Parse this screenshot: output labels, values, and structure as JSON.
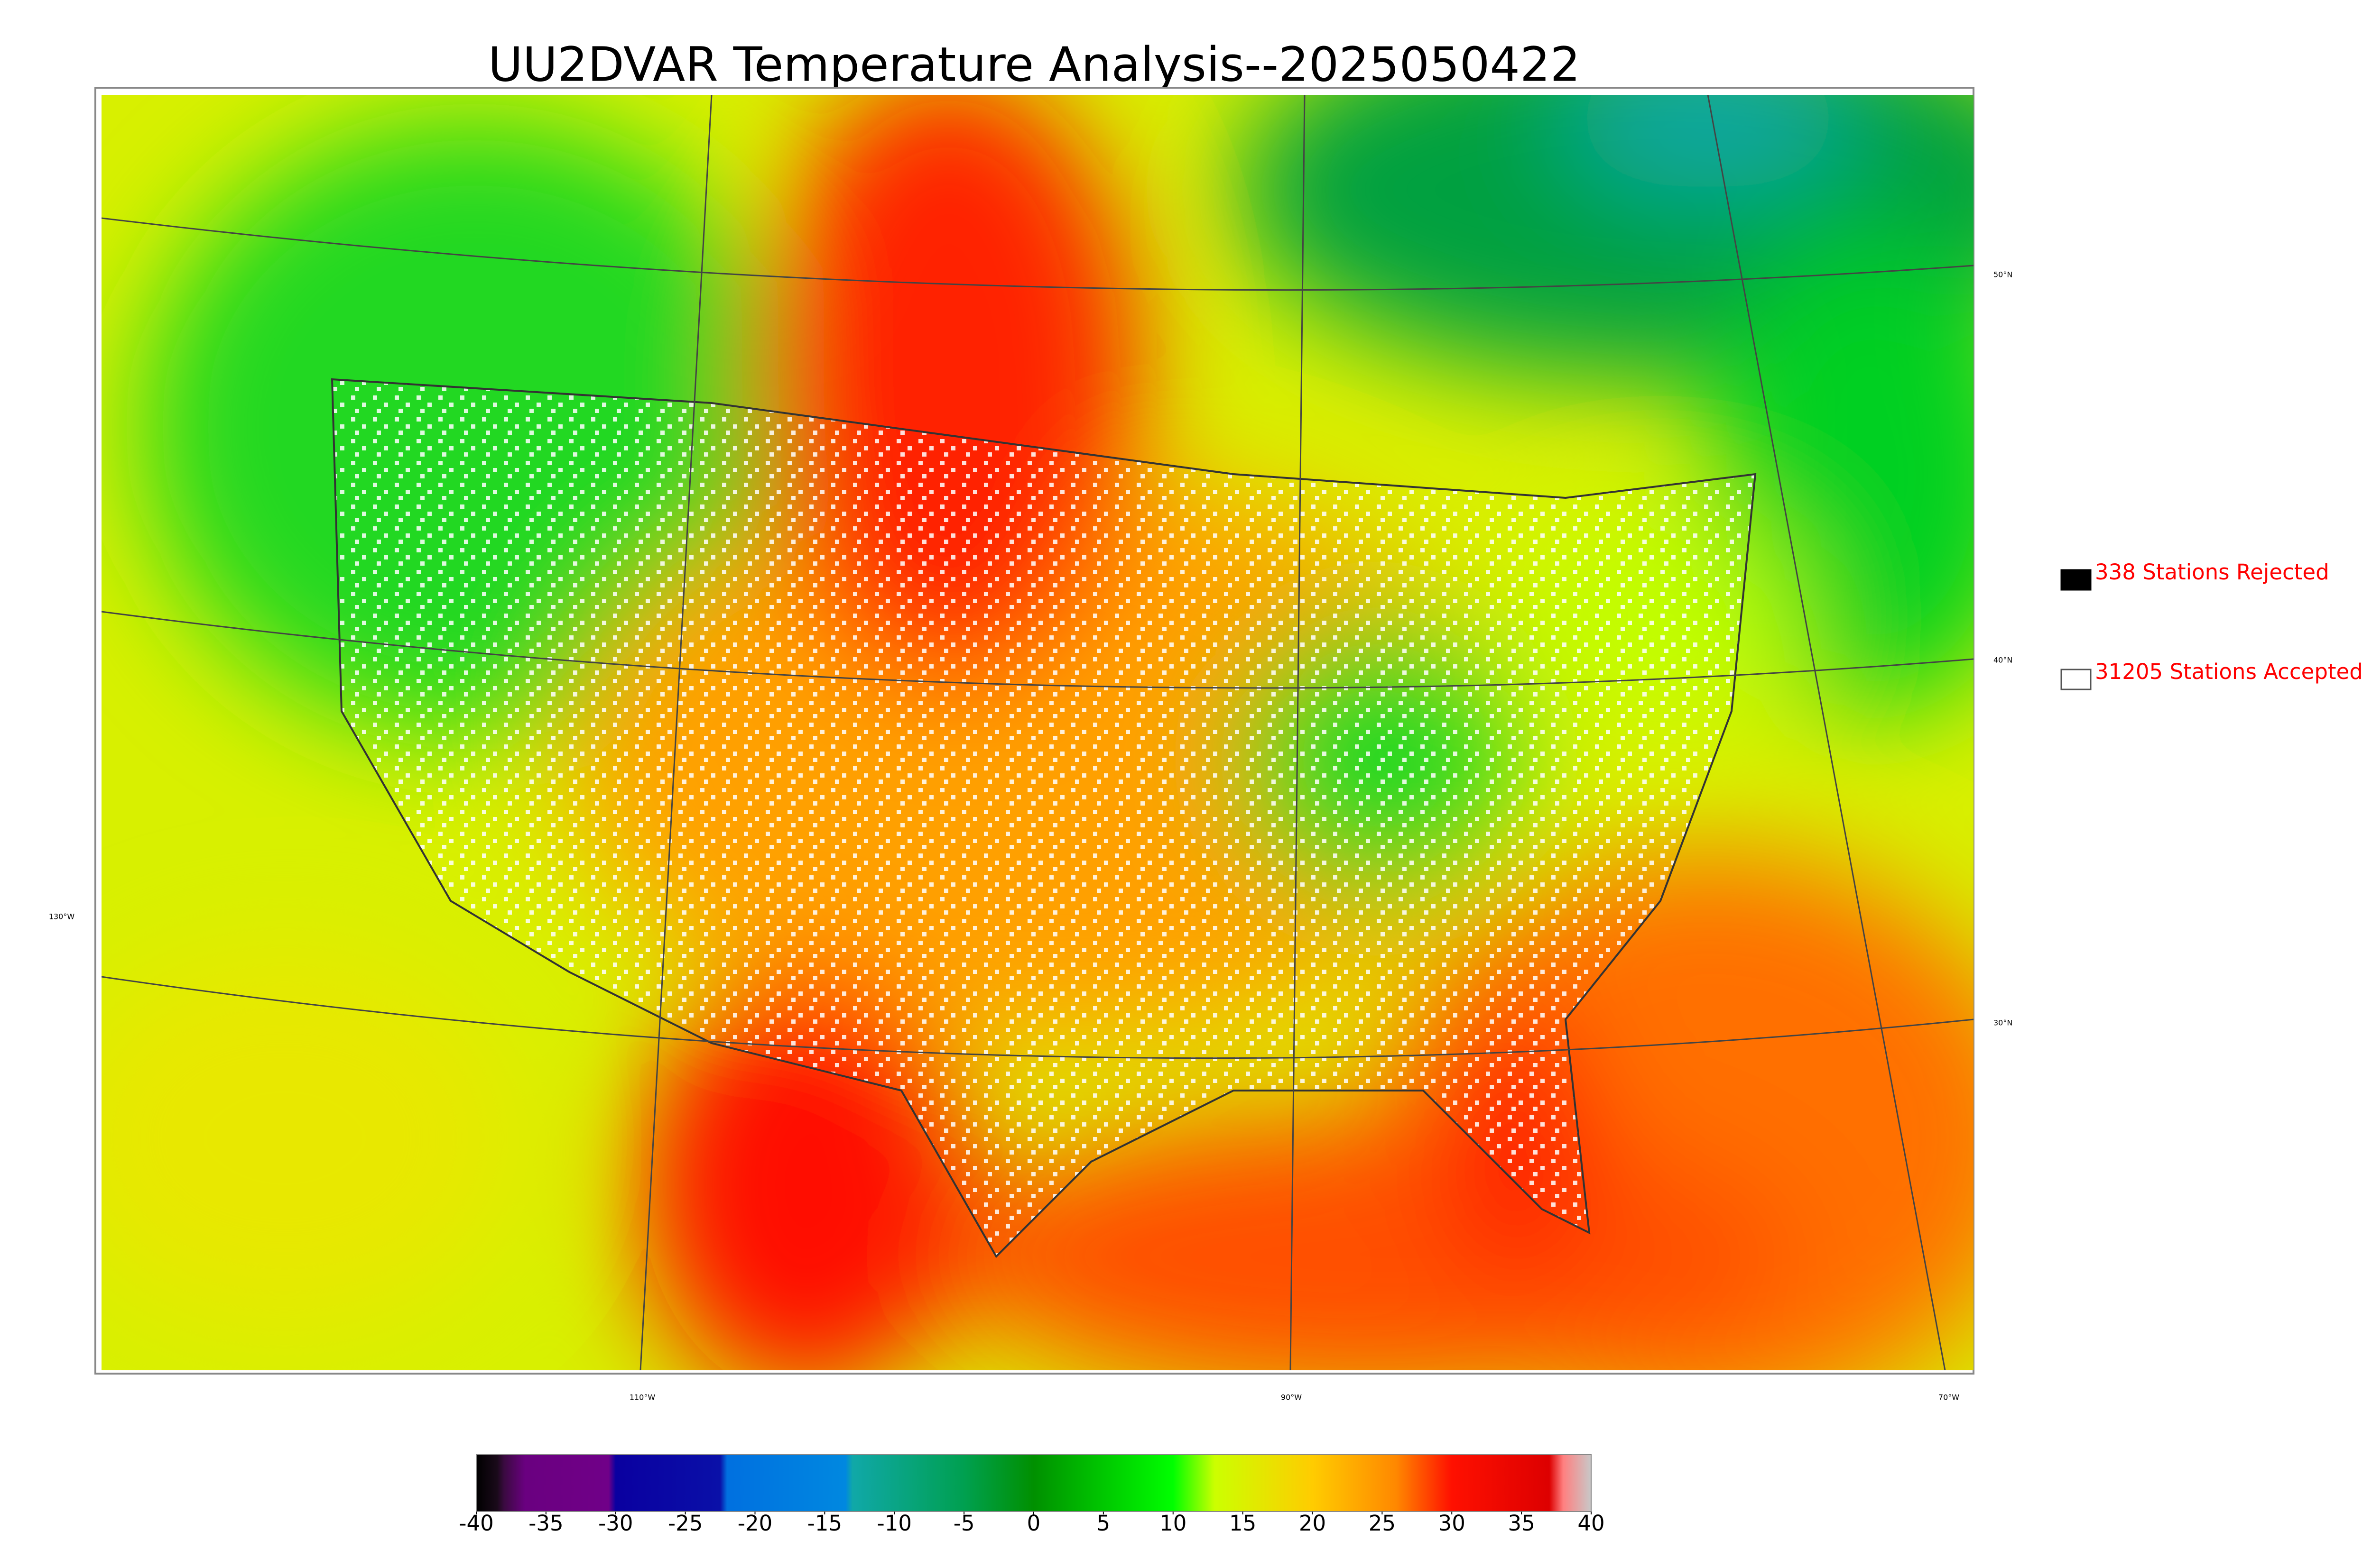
{
  "title": "UU2DVAR Temperature Analysis--2025050422",
  "legend": {
    "rejected": "338 Stations Rejected",
    "accepted": "31205 Stations Accepted"
  },
  "graticule": {
    "lat": [
      "50°N",
      "40°N",
      "30°N"
    ],
    "lon": [
      "130°W",
      "110°W",
      "90°W",
      "70°W"
    ]
  },
  "colorbar": {
    "lim": [
      -40,
      40
    ],
    "ticks": [
      -40,
      -35,
      -30,
      -25,
      -20,
      -15,
      -10,
      -5,
      0,
      5,
      10,
      15,
      20,
      25,
      30,
      35,
      40
    ],
    "stops": [
      {
        "value": -40,
        "color": "#000000"
      },
      {
        "value": -38.5,
        "color": "#1a0a1a"
      },
      {
        "value": -38,
        "color": "#3a0a40"
      },
      {
        "value": -36.5,
        "color": "#6a0080"
      },
      {
        "value": -30.5,
        "color": "#700088"
      },
      {
        "value": -30,
        "color": "#0a00a0"
      },
      {
        "value": -22.5,
        "color": "#0a10a8"
      },
      {
        "value": -22,
        "color": "#0070e0"
      },
      {
        "value": -13.5,
        "color": "#0088e0"
      },
      {
        "value": -13,
        "color": "#10a8a8"
      },
      {
        "value": -5,
        "color": "#00a050"
      },
      {
        "value": 0,
        "color": "#009000"
      },
      {
        "value": 10,
        "color": "#00ff00"
      },
      {
        "value": 13,
        "color": "#ccff00"
      },
      {
        "value": 20,
        "color": "#ffcc00"
      },
      {
        "value": 26,
        "color": "#ff8800"
      },
      {
        "value": 30,
        "color": "#ff1000"
      },
      {
        "value": 37,
        "color": "#dd0000"
      },
      {
        "value": 38,
        "color": "#ff8080"
      },
      {
        "value": 40,
        "color": "#c8c8c8"
      }
    ]
  }
}
